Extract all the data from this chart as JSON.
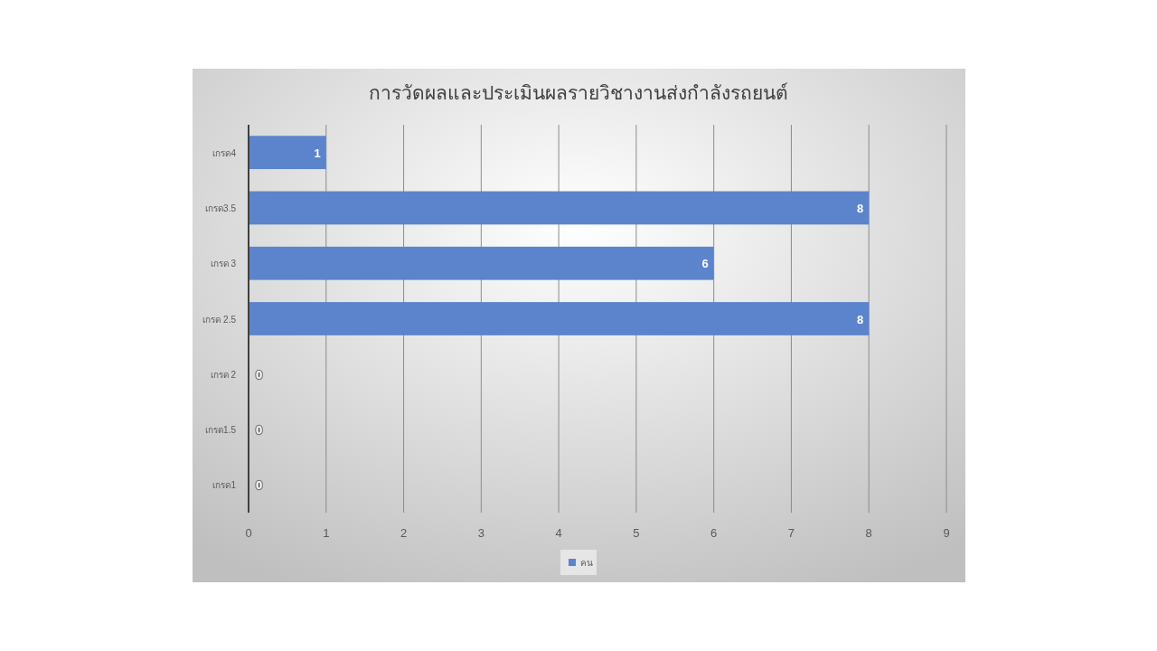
{
  "chart_data": {
    "type": "bar",
    "orientation": "horizontal",
    "title": "การวัดผลและประเมินผลรายวิชางานส่งกำลังรถยนต์",
    "categories": [
      "เกรด4",
      "เกรด3.5",
      "เกรด 3",
      "เกรด 2.5",
      "เกรด 2",
      "เกรด1.5",
      "เกรด1"
    ],
    "series": [
      {
        "name": "คน",
        "color": "#5b84cc",
        "values": [
          1,
          8,
          6,
          8,
          0,
          0,
          0
        ]
      }
    ],
    "xlim": [
      0,
      9
    ],
    "xticks": [
      0,
      1,
      2,
      3,
      4,
      5,
      6,
      7,
      8,
      9
    ],
    "grid": "x",
    "legend": "bottom",
    "data_labels": true
  }
}
